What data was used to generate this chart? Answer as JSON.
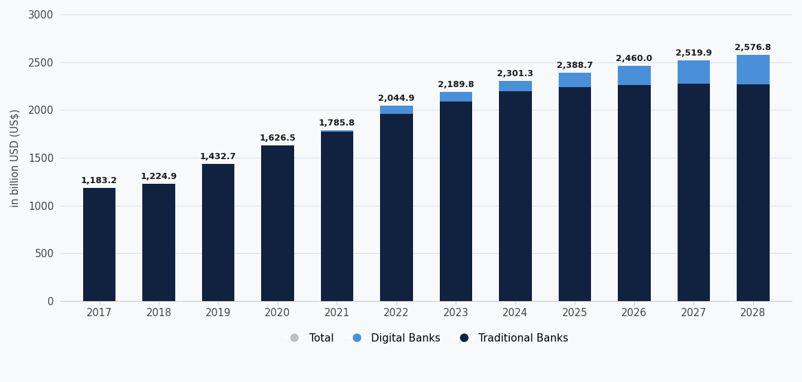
{
  "years": [
    "2017",
    "2018",
    "2019",
    "2020",
    "2021",
    "2022",
    "2023",
    "2024",
    "2025",
    "2026",
    "2027",
    "2028"
  ],
  "totals": [
    1183.2,
    1224.9,
    1432.7,
    1626.5,
    1785.8,
    2044.9,
    2189.8,
    2301.3,
    2388.7,
    2460.0,
    2519.9,
    2576.8
  ],
  "traditional": [
    1183.2,
    1224.9,
    1432.7,
    1626.5,
    1771.0,
    1958.0,
    2090.0,
    2195.0,
    2238.0,
    2260.0,
    2272.0,
    2270.0
  ],
  "digital": [
    0.0,
    0.0,
    0.0,
    0.0,
    14.8,
    86.9,
    99.8,
    106.3,
    150.7,
    200.0,
    247.9,
    306.8
  ],
  "color_traditional": "#112240",
  "color_digital": "#4a90d9",
  "color_total_legend": "#c0c0c0",
  "ylabel": "in billion USD (US$)",
  "ylim": [
    0,
    3000
  ],
  "yticks": [
    0,
    500,
    1000,
    1500,
    2000,
    2500,
    3000
  ],
  "background_color": "#f8f9fb",
  "grid_color": "#dde2ea",
  "bar_width": 0.55,
  "label_fontsize": 9.0,
  "axis_label_fontsize": 10.5,
  "tick_fontsize": 10.5,
  "legend_fontsize": 11
}
